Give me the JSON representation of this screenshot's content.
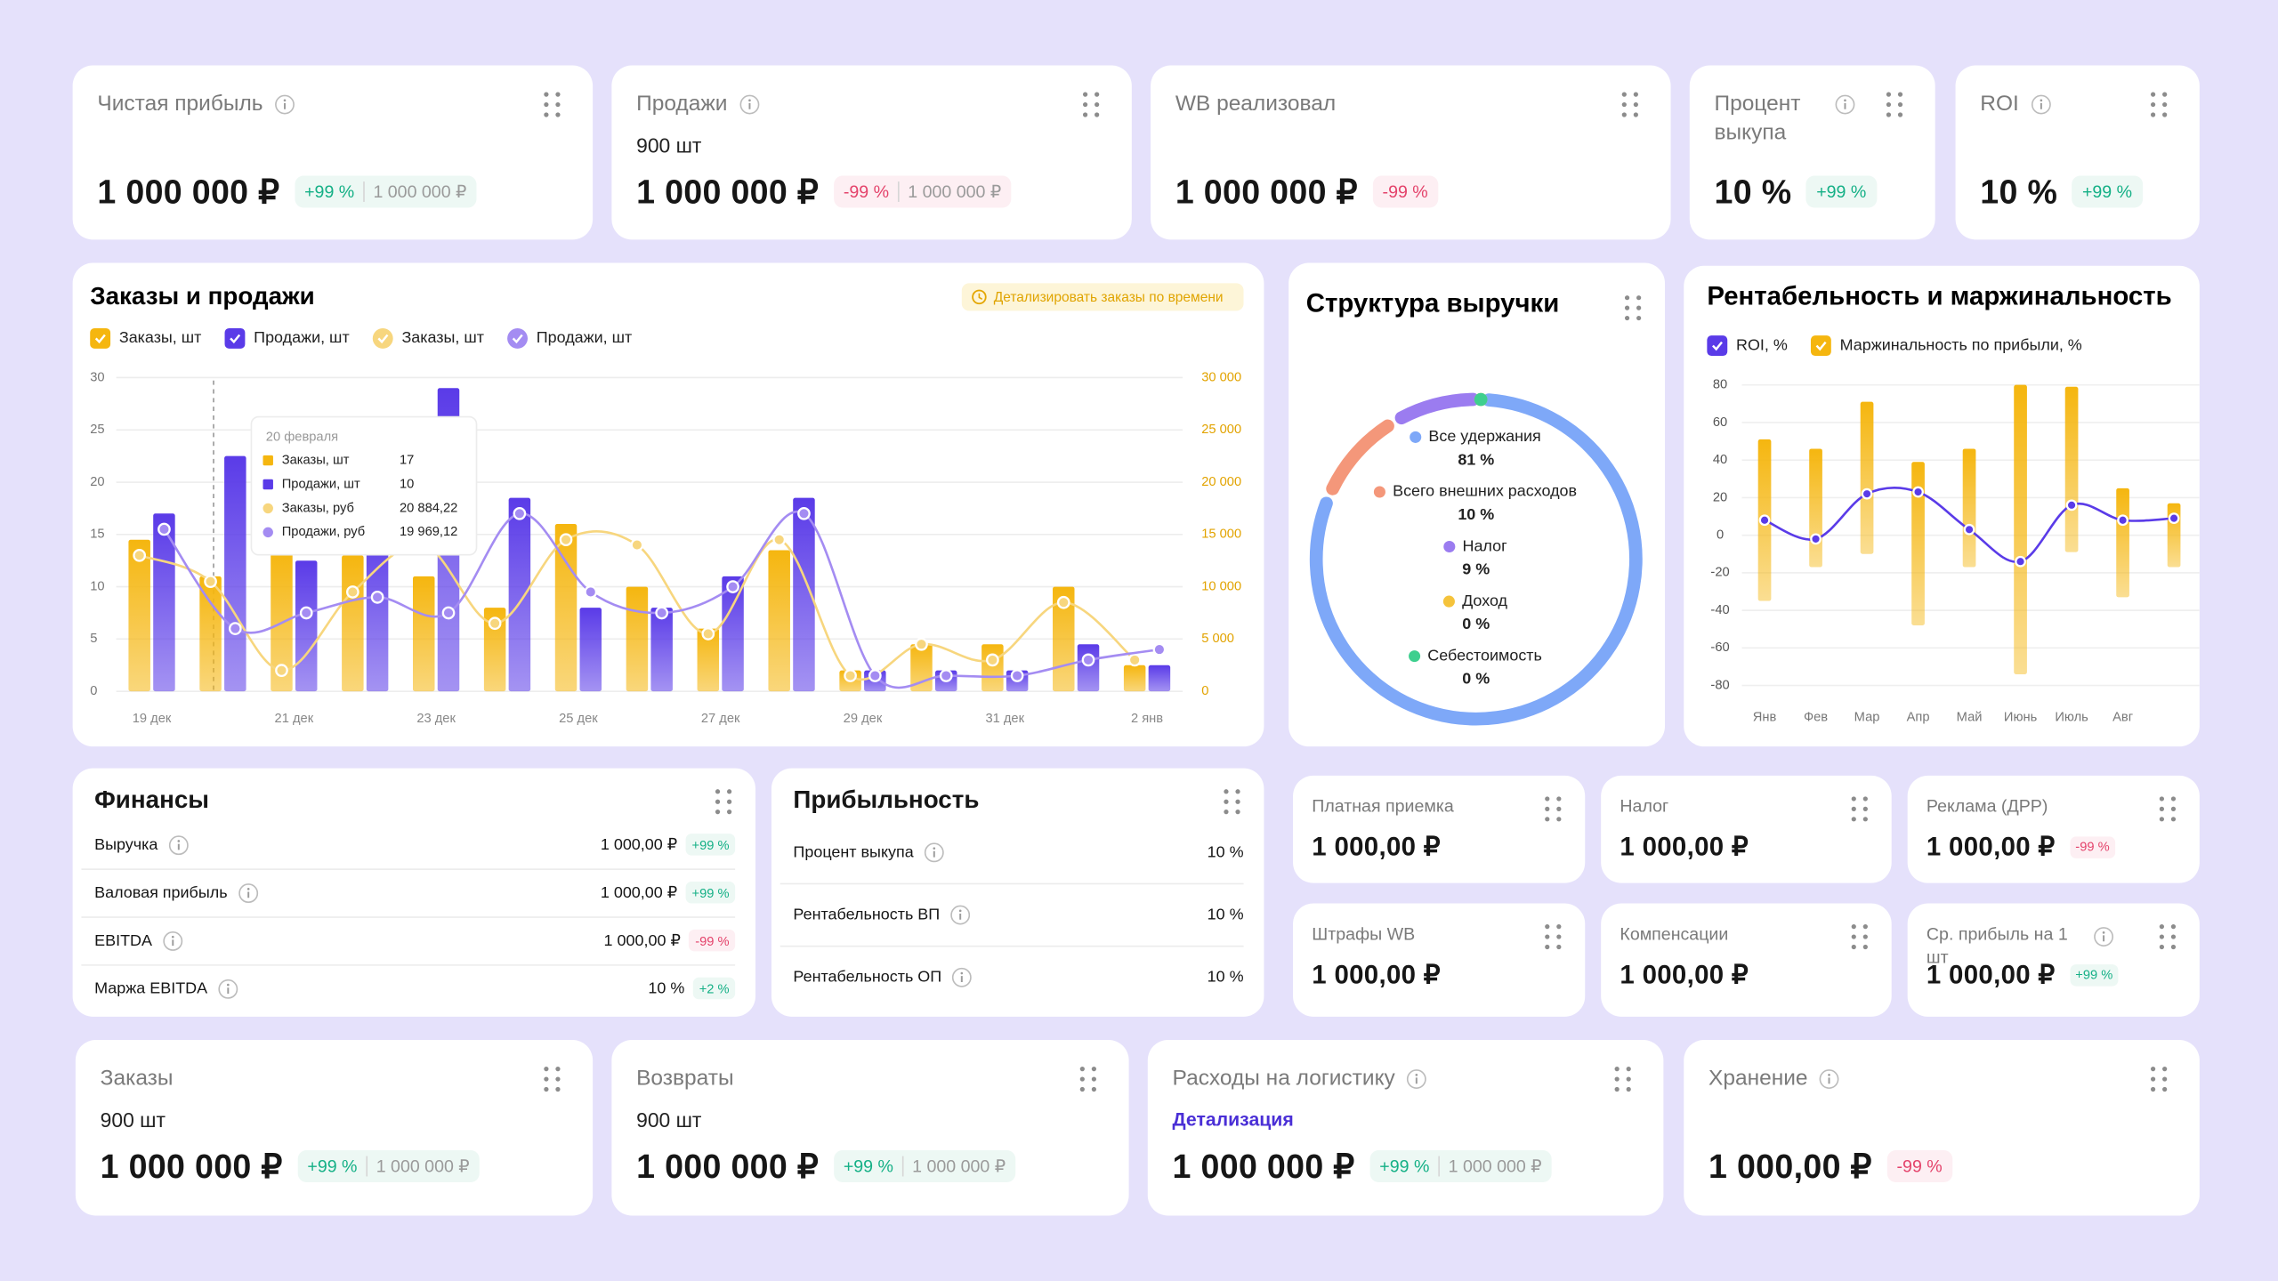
{
  "kpi_top": [
    {
      "title": "Чистая прибыль",
      "value": "1 000 000 ₽",
      "badge": "+99 %",
      "compare": "1 000 000 ₽"
    },
    {
      "title": "Продажи",
      "sub": "900 шт",
      "value": "1 000 000 ₽",
      "badge": "-99 %",
      "compare": "1 000 000 ₽"
    },
    {
      "title": "WB реализовал",
      "value": "1 000 000 ₽",
      "badge": "-99 %"
    },
    {
      "title": "Процент выкупа",
      "value": "10 %",
      "badge": "+99 %"
    },
    {
      "title": "ROI",
      "value": "10 %",
      "badge": "+99 %"
    }
  ],
  "chart_data": [
    {
      "type": "combo",
      "title": "Заказы и продажи",
      "button": "Детализировать заказы по времени",
      "categories": [
        "19 дек",
        null,
        "21 дек",
        null,
        "23 дек",
        null,
        "25 дек",
        null,
        "27 дек",
        null,
        "29 дек",
        null,
        "31 дек",
        null,
        "2 янв"
      ],
      "series": [
        {
          "name": "Заказы, шт",
          "type": "bar",
          "color": "#f5b60f",
          "values": [
            14.5,
            11,
            13.5,
            13,
            11,
            8,
            16,
            10,
            6,
            13.5,
            2,
            4.5,
            4.5,
            10,
            2.5
          ]
        },
        {
          "name": "Продажи, шт",
          "type": "bar",
          "color": "#5a3be8",
          "values": [
            17,
            22.5,
            12.5,
            16,
            29,
            18.5,
            8,
            8,
            11,
            18.5,
            2,
            2,
            2,
            4.5,
            2.5
          ]
        },
        {
          "name": "Заказы, шт",
          "type": "line",
          "axis": "y2",
          "color": "#f7d67e",
          "values": [
            13000,
            10500,
            2000,
            9500,
            14000,
            6500,
            14500,
            14000,
            5500,
            14500,
            1500,
            4500,
            3000,
            8500,
            3000
          ]
        },
        {
          "name": "Продажи, шт",
          "type": "line",
          "axis": "y2",
          "color": "#a48cf2",
          "values": [
            15500,
            6000,
            7500,
            9000,
            7500,
            17000,
            9500,
            7500,
            10000,
            17000,
            1500,
            1500,
            1500,
            3000,
            4000
          ]
        }
      ],
      "ylim": [
        0,
        30
      ],
      "yticks": [
        0,
        5,
        10,
        15,
        20,
        25,
        30
      ],
      "y2lim": [
        0,
        30000
      ],
      "y2ticks": [
        0,
        {
          "value": 5000,
          "label": "5 000"
        },
        {
          "value": 10000,
          "label": "10 000"
        },
        {
          "value": 15000,
          "label": "15 000"
        },
        {
          "value": 20000,
          "label": "20 000"
        },
        {
          "value": 25000,
          "label": "25 000"
        },
        {
          "value": 30000,
          "label": "30 000"
        }
      ],
      "grid": true,
      "tooltip": {
        "title": "20 февраля",
        "rows": [
          {
            "label": "Заказы, шт",
            "value": 17
          },
          {
            "label": "Продажи, шт",
            "value": 10
          },
          {
            "label": "Заказы, руб",
            "value": "20 884,22"
          },
          {
            "label": "Продажи, руб",
            "value": "19 969,12"
          }
        ]
      }
    },
    {
      "type": "donut",
      "title": "Структура выручки",
      "categories": [
        "Все удержания",
        "Всего внешних расходов",
        "Налог",
        "Доход",
        "Себестоимость"
      ],
      "values": [
        81,
        10,
        9,
        0,
        0
      ],
      "value_labels": [
        "81 %",
        "10 %",
        "9 %",
        "0 %",
        "0 %"
      ],
      "colors": [
        "#7ea8f8",
        "#f4977a",
        "#9b7cf0",
        "#f5c33b",
        "#3ecf8e"
      ]
    },
    {
      "type": "rangebar",
      "title": "Рентабельность и маржинальность",
      "categories": [
        "Янв",
        "Фев",
        "Мар",
        "Апр",
        "Май",
        "Июнь",
        "Июль",
        "Авг",
        null
      ],
      "series": [
        {
          "name": "ROI, %",
          "type": "line",
          "color": "#5a3be8",
          "values": [
            8,
            -2,
            22,
            23,
            3,
            -14,
            16,
            8,
            9
          ]
        },
        {
          "name": "Маржинальность по прибыли, %",
          "type": "range",
          "color": "#f5b60f",
          "high": [
            51,
            46,
            71,
            39,
            46,
            80,
            79,
            25,
            17
          ],
          "low": [
            -35,
            -17,
            -10,
            -48,
            -17,
            -74,
            -9,
            -33,
            -17
          ]
        }
      ],
      "ylim": [
        -80,
        80
      ],
      "yticks": [
        -80,
        -60,
        -40,
        -20,
        0,
        20,
        40,
        60,
        80
      ],
      "grid": true
    }
  ],
  "finance": {
    "title": "Финансы",
    "rows": [
      {
        "label": "Выручка",
        "value": "1 000,00 ₽",
        "badge": "+99 %"
      },
      {
        "label": "Валовая прибыль",
        "value": "1 000,00 ₽",
        "badge": "+99 %"
      },
      {
        "label": "EBITDA",
        "value": "1 000,00 ₽",
        "badge": "-99 %"
      },
      {
        "label": "Маржа EBITDA",
        "value": "10 %",
        "badge": "+2 %"
      }
    ]
  },
  "profitability": {
    "title": "Прибыльность",
    "rows": [
      {
        "label": "Процент выкупа",
        "value": "10 %"
      },
      {
        "label": "Рентабельность ВП",
        "value": "10 %"
      },
      {
        "label": "Рентабельность ОП",
        "value": "10 %"
      }
    ]
  },
  "expenses": [
    {
      "title": "Платная приемка",
      "value": "1 000,00 ₽"
    },
    {
      "title": "Налог",
      "value": "1 000,00 ₽"
    },
    {
      "title": "Реклама (ДРР)",
      "value": "1 000,00 ₽",
      "badge": "-99 %"
    },
    {
      "title": "Штрафы WB",
      "value": "1 000,00 ₽"
    },
    {
      "title": "Компенсации",
      "value": "1 000,00 ₽"
    },
    {
      "title": "Ср. прибыль на 1 шт",
      "value": "1 000,00 ₽",
      "badge": "+99 %"
    }
  ],
  "kpi_bottom": [
    {
      "title": "Заказы",
      "sub": "900 шт",
      "value": "1 000 000 ₽",
      "badge": "+99 %",
      "compare": "1 000 000 ₽"
    },
    {
      "title": "Возвраты",
      "sub": "900 шт",
      "value": "1 000 000 ₽",
      "badge": "+99 %",
      "compare": "1 000 000 ₽"
    },
    {
      "title": "Расходы на логистику",
      "link": "Детализация",
      "value": "1 000 000 ₽",
      "badge": "+99 %",
      "compare": "1 000 000 ₽"
    },
    {
      "title": "Хранение",
      "value": "1 000,00 ₽",
      "badge": "-99 %"
    }
  ]
}
